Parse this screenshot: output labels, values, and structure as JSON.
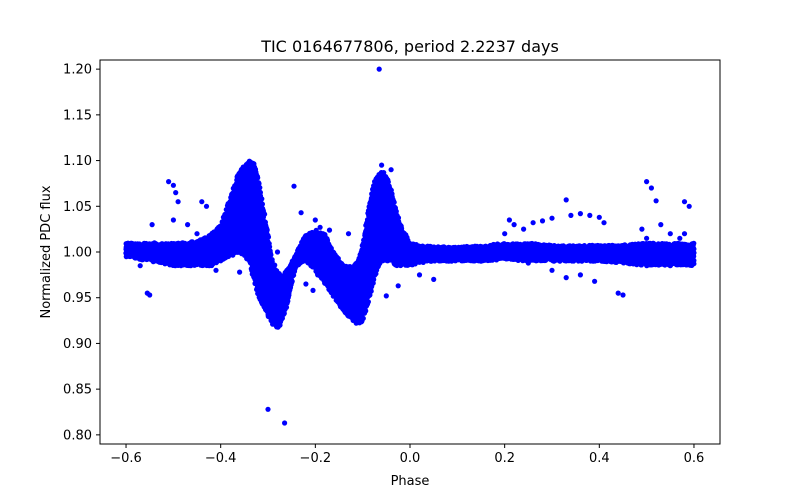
{
  "chart_data": {
    "type": "scatter",
    "title": "TIC 0164677806, period 2.2237 days",
    "xlabel": "Phase",
    "ylabel": "Normalized PDC flux",
    "xlim": [
      -0.655,
      0.655
    ],
    "ylim": [
      0.79,
      1.21
    ],
    "x_ticks": [
      -0.6,
      -0.4,
      -0.2,
      0.0,
      0.2,
      0.4,
      0.6
    ],
    "x_tick_labels": [
      "−0.6",
      "−0.4",
      "−0.2",
      "0.0",
      "0.2",
      "0.4",
      "0.6"
    ],
    "y_ticks": [
      0.8,
      0.85,
      0.9,
      0.95,
      1.0,
      1.05,
      1.1,
      1.15,
      1.2
    ],
    "y_tick_labels": [
      "0.80",
      "0.85",
      "0.90",
      "0.95",
      "1.00",
      "1.05",
      "1.10",
      "1.15",
      "1.20"
    ],
    "grid": false,
    "marker_color": "#0000ff",
    "series": [
      {
        "band_x": [
          -0.6,
          -0.55,
          -0.5,
          -0.45,
          -0.42,
          -0.4,
          -0.38,
          -0.36,
          -0.34,
          -0.33,
          -0.32,
          -0.3,
          -0.29,
          -0.28,
          -0.27,
          -0.26,
          -0.25,
          -0.24,
          -0.22,
          -0.2,
          -0.18,
          -0.16,
          -0.14,
          -0.12,
          -0.11,
          -0.1,
          -0.09,
          -0.08,
          -0.07,
          -0.06,
          -0.05,
          -0.04,
          -0.03,
          -0.02,
          0.0,
          0.02,
          0.05,
          0.1,
          0.15,
          0.2,
          0.25,
          0.3,
          0.35,
          0.4,
          0.45,
          0.5,
          0.55,
          0.6
        ],
        "band_upper": [
          1.01,
          1.01,
          1.01,
          1.012,
          1.02,
          1.03,
          1.06,
          1.09,
          1.1,
          1.098,
          1.08,
          1.02,
          0.99,
          0.98,
          0.975,
          0.98,
          0.99,
          1.0,
          1.02,
          1.025,
          1.02,
          1.0,
          0.985,
          0.985,
          0.99,
          1.01,
          1.04,
          1.07,
          1.085,
          1.09,
          1.085,
          1.07,
          1.05,
          1.03,
          1.01,
          1.008,
          1.006,
          1.006,
          1.007,
          1.01,
          1.01,
          1.008,
          1.007,
          1.008,
          1.008,
          1.01,
          1.01,
          1.01
        ],
        "band_lower": [
          0.995,
          0.99,
          0.985,
          0.985,
          0.985,
          0.99,
          0.995,
          1.0,
          0.99,
          0.97,
          0.95,
          0.93,
          0.92,
          0.915,
          0.925,
          0.94,
          0.965,
          0.985,
          0.99,
          0.98,
          0.965,
          0.95,
          0.935,
          0.925,
          0.92,
          0.925,
          0.94,
          0.96,
          0.98,
          0.99,
          0.99,
          0.99,
          0.985,
          0.985,
          0.985,
          0.988,
          0.99,
          0.99,
          0.99,
          0.992,
          0.99,
          0.99,
          0.99,
          0.99,
          0.988,
          0.985,
          0.985,
          0.985
        ],
        "outlier_x": [
          -0.065,
          -0.3,
          -0.265,
          -0.51,
          -0.5,
          -0.495,
          -0.49,
          -0.5,
          -0.47,
          -0.44,
          -0.43,
          -0.45,
          -0.3,
          -0.28,
          -0.245,
          -0.23,
          -0.2,
          -0.19,
          -0.17,
          -0.24,
          -0.26,
          -0.22,
          -0.205,
          -0.195,
          -0.14,
          -0.13,
          -0.05,
          -0.025,
          -0.2,
          -0.215,
          -0.19,
          -0.13,
          0.02,
          0.05,
          0.2,
          0.21,
          0.22,
          0.24,
          0.26,
          0.28,
          0.3,
          0.33,
          0.34,
          0.36,
          0.38,
          0.4,
          0.41,
          0.5,
          0.51,
          0.52,
          0.53,
          0.58,
          0.59,
          0.58,
          0.44,
          0.45,
          0.49,
          0.5,
          0.39,
          0.36,
          0.33,
          0.3,
          0.25,
          0.55,
          0.57,
          -0.41,
          -0.36,
          -0.555,
          -0.55,
          -0.545,
          -0.54,
          -0.57,
          -0.52,
          -0.48,
          -0.46,
          -0.06,
          -0.04
        ],
        "outlier_y": [
          1.2,
          0.828,
          0.813,
          1.077,
          1.073,
          1.065,
          1.055,
          1.035,
          1.03,
          1.055,
          1.05,
          1.02,
          0.995,
          1.0,
          1.072,
          1.043,
          1.035,
          1.027,
          1.024,
          0.985,
          0.98,
          0.965,
          0.958,
          0.975,
          0.965,
          0.94,
          0.952,
          0.963,
          1.012,
          1.005,
          1.008,
          1.02,
          0.975,
          0.97,
          1.02,
          1.035,
          1.03,
          1.025,
          1.032,
          1.034,
          1.037,
          1.057,
          1.04,
          1.042,
          1.04,
          1.038,
          1.032,
          1.077,
          1.07,
          1.056,
          1.03,
          1.055,
          1.05,
          1.02,
          0.955,
          0.953,
          1.025,
          1.015,
          0.968,
          0.975,
          0.972,
          0.98,
          0.988,
          1.02,
          1.015,
          0.98,
          0.978,
          0.955,
          0.953,
          1.03,
          1.01,
          0.985,
          0.99,
          1.01,
          1.005,
          1.095,
          1.09
        ]
      }
    ]
  }
}
